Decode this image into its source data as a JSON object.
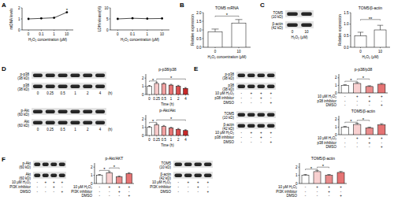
{
  "panel_labels": [
    "A",
    "B",
    "C",
    "D",
    "E",
    "F"
  ],
  "chart_data": [
    {
      "type": "line",
      "y_label": "mtDNA levels",
      "x_label": "H₂O₂ concentration (μM)",
      "categories": [
        "0",
        "0.1",
        "1",
        "10"
      ],
      "values": [
        1.0,
        1.05,
        1.1,
        1.6
      ],
      "color": "#000000",
      "marker": "circle",
      "ylim": [
        0,
        2
      ],
      "yticks": [
        0,
        1,
        2
      ],
      "annotations": [
        {
          "text": "*",
          "from": 3,
          "to": 3,
          "y": 1.8
        }
      ]
    },
    {
      "type": "line",
      "y_label": "LDH release(%)",
      "x_label": "H₂O₂ concentration (μM)",
      "categories": [
        "0",
        "0.1",
        "1",
        "10"
      ],
      "values": [
        5.0,
        5.3,
        5.1,
        5.2
      ],
      "color": "#000000",
      "marker": "circle",
      "ylim": [
        0,
        10
      ],
      "yticks": [
        0,
        5,
        10
      ]
    },
    {
      "type": "bar",
      "title": "TOM5 mRNA",
      "y_label": "Relative expression",
      "x_label": "H₂O₂ concentration (μM)",
      "categories": [
        "0",
        "10"
      ],
      "values": [
        0.9,
        1.4
      ],
      "errors": [
        0.15,
        0.2
      ],
      "color": "#ffffff",
      "ylim": [
        0,
        2
      ],
      "yticks": [
        {
          "value": 0,
          "label": "0.0"
        },
        0.5,
        {
          "value": 1,
          "label": "1.0"
        },
        1.5,
        {
          "value": 2,
          "label": "2.0"
        }
      ],
      "annotations": [
        {
          "text": "*",
          "from": 0,
          "to": 1,
          "y": 1.8
        }
      ]
    },
    {
      "type": "bar",
      "title": "TOM5/β-actin",
      "y_label": "Relative expression",
      "x_label": "H₂O₂ (μM)",
      "categories": [
        "0",
        "10"
      ],
      "values": [
        0.5,
        0.75
      ],
      "errors": [
        0.15,
        0.2
      ],
      "color": "#ffffff",
      "ylim": [
        0,
        1.5
      ],
      "yticks": [
        {
          "value": 0,
          "label": "0.0"
        },
        0.5,
        {
          "value": 1,
          "label": "1.0"
        },
        1.5
      ],
      "annotations": [
        {
          "text": "**",
          "from": 0,
          "to": 1,
          "y": 1.2
        }
      ]
    },
    {
      "type": "bar",
      "title": "p-p38/p38",
      "x_label": "Time (h)",
      "categories": [
        "0",
        "0.25",
        "0.5",
        "1",
        "2",
        "4"
      ],
      "values": [
        1.0,
        1.35,
        1.3,
        1.15,
        1.0,
        0.75
      ],
      "errors": [
        0.1,
        0.15,
        0.12,
        0.1,
        0.12,
        0.1
      ],
      "colors": [
        "#ffffff",
        "#f6c9c9",
        "#f0a0a0",
        "#e57373",
        "#d94f4f",
        "#c62828"
      ],
      "ylim": [
        0,
        2.5
      ],
      "yticks": [
        0,
        1,
        2
      ],
      "annotations": [
        {
          "text": "*",
          "from": 0,
          "to": 1,
          "y": 1.65
        },
        {
          "text": "*",
          "from": 1,
          "to": 5,
          "y": 1.9
        }
      ]
    },
    {
      "type": "bar",
      "title": "p-Akt/Akt",
      "x_label": "Time (h)",
      "categories": [
        "0",
        "0.25",
        "0.5",
        "1",
        "2",
        "4"
      ],
      "values": [
        1.0,
        1.3,
        1.1,
        0.9,
        0.75,
        0.6
      ],
      "errors": [
        0.1,
        0.15,
        0.12,
        0.1,
        0.1,
        0.1
      ],
      "colors": [
        "#ffffff",
        "#f6c9c9",
        "#f0a0a0",
        "#e57373",
        "#d94f4f",
        "#c62828"
      ],
      "ylim": [
        0,
        2.5
      ],
      "yticks": [
        0,
        1,
        2
      ],
      "annotations": [
        {
          "text": "*",
          "from": 0,
          "to": 1,
          "y": 1.6
        },
        {
          "text": "*",
          "from": 1,
          "to": 5,
          "y": 1.9
        }
      ]
    },
    {
      "type": "bar",
      "title": "p-p38/p38",
      "categories": [
        null,
        null,
        null,
        null
      ],
      "values": [
        1.0,
        1.25,
        0.85,
        1.15
      ],
      "errors": [
        0.1,
        0.12,
        0.1,
        0.12
      ],
      "colors": [
        "#ffffff",
        "#f8d0d0",
        "#e88b8b",
        "#e57373"
      ],
      "ylim": [
        0,
        2.5
      ],
      "yticks": [
        0,
        1,
        2
      ],
      "conditions": [
        {
          "label": "10 μM H₂O₂",
          "values": [
            "-",
            "+",
            "+",
            "+"
          ]
        },
        {
          "label": "p38 inhibitor",
          "values": [
            "-",
            "-",
            "+",
            "-"
          ]
        },
        {
          "label": "DMSO",
          "values": [
            "-",
            "-",
            "-",
            "+"
          ]
        }
      ],
      "annotations": [
        {
          "text": "*",
          "from": 0,
          "to": 1,
          "y": 1.55
        },
        {
          "text": "*",
          "from": 1,
          "to": 2,
          "y": 1.85
        }
      ]
    },
    {
      "type": "bar",
      "title": "TOM5/β-actin",
      "categories": [
        null,
        null,
        null,
        null
      ],
      "values": [
        1.0,
        1.35,
        0.9,
        1.3
      ],
      "errors": [
        0.1,
        0.15,
        0.1,
        0.15
      ],
      "colors": [
        "#ffffff",
        "#f8d0d0",
        "#e88b8b",
        "#e57373"
      ],
      "ylim": [
        0,
        2.5
      ],
      "yticks": [
        0,
        1,
        2
      ],
      "conditions": [
        {
          "label": "10 μM H₂O₂",
          "values": [
            "-",
            "+",
            "+",
            "+"
          ]
        },
        {
          "label": "p38 inhibitor",
          "values": [
            "-",
            "-",
            "+",
            "-"
          ]
        },
        {
          "label": "DMSO",
          "values": [
            "-",
            "-",
            "-",
            "+"
          ]
        }
      ],
      "annotations": [
        {
          "text": "*",
          "from": 0,
          "to": 1,
          "y": 1.65
        },
        {
          "text": "*",
          "from": 1,
          "to": 2,
          "y": 1.9
        }
      ]
    },
    {
      "type": "bar",
      "title": "p-Akt/AKT",
      "categories": [
        null,
        null,
        null,
        null
      ],
      "values": [
        1.0,
        1.3,
        0.8,
        1.2
      ],
      "errors": [
        0.1,
        0.15,
        0.1,
        0.12
      ],
      "colors": [
        "#ffffff",
        "#f8d0d0",
        "#e88b8b",
        "#e57373"
      ],
      "ylim": [
        0,
        2.5
      ],
      "yticks": [
        0,
        1,
        2
      ],
      "conditions": [
        {
          "label": "10 μM H₂O₂",
          "values": [
            "-",
            "+",
            "+",
            "+"
          ]
        },
        {
          "label": "PI3K inhibitor",
          "values": [
            "-",
            "-",
            "+",
            "-"
          ]
        },
        {
          "label": "DMSO",
          "values": [
            "-",
            "-",
            "-",
            "+"
          ]
        }
      ],
      "annotations": [
        {
          "text": "*",
          "from": 0,
          "to": 1,
          "y": 1.6
        },
        {
          "text": "*",
          "from": 1,
          "to": 2,
          "y": 1.9
        }
      ]
    },
    {
      "type": "bar",
      "title": "TOM5/β-actin",
      "categories": [
        null,
        null,
        null,
        null
      ],
      "values": [
        1.0,
        1.45,
        1.0,
        1.35
      ],
      "errors": [
        0.1,
        0.15,
        0.1,
        0.12
      ],
      "colors": [
        "#ffffff",
        "#f8d0d0",
        "#e88b8b",
        "#e57373"
      ],
      "ylim": [
        0,
        2.5
      ],
      "yticks": [
        0,
        1,
        2
      ],
      "conditions": [
        {
          "label": "10 μM H₂O₂",
          "values": [
            "-",
            "+",
            "+",
            "+"
          ]
        },
        {
          "label": "PI3K inhibitor",
          "values": [
            "-",
            "-",
            "+",
            "-"
          ]
        },
        {
          "label": "DMSO",
          "values": [
            "-",
            "-",
            "-",
            "+"
          ]
        }
      ],
      "annotations": [
        {
          "text": "*",
          "from": 0,
          "to": 1,
          "y": 1.75
        },
        {
          "text": "*",
          "from": 1,
          "to": 2,
          "y": 2.0
        }
      ]
    }
  ],
  "blots": [
    {
      "rows": [
        {
          "label": "TOM5",
          "kd": "(10 kD)"
        },
        {
          "label": "β-actin",
          "kd": "(42 kD)"
        }
      ],
      "lane_labels": [
        "0",
        "10"
      ],
      "lane_title": "H₂O₂ (μM)"
    },
    {
      "rows": [
        {
          "label": "p-p38",
          "kd": "(38 kD)"
        },
        {
          "label": "p38",
          "kd": "(38 kD)"
        }
      ],
      "lane_labels": [
        "0",
        "0.25",
        "0.5",
        "1",
        "2",
        "4"
      ],
      "lane_title": "(h)"
    },
    {
      "rows": [
        {
          "label": "p-Akt",
          "kd": "(60 kD)"
        },
        {
          "label": "Akt",
          "kd": "(60 kD)"
        }
      ],
      "lane_labels": [
        "0",
        "0.25",
        "0.5",
        "1",
        "2",
        "4"
      ],
      "lane_title": "(h)"
    },
    {
      "rows": [
        {
          "label": "p-p38",
          "kd": "(38 kD)"
        },
        {
          "label": "p38",
          "kd": "(38 kD)"
        }
      ],
      "conditions": [
        {
          "label": "10 μM H₂O₂",
          "values": [
            "-",
            "+",
            "+",
            "+"
          ]
        },
        {
          "label": "p38 inhibitor",
          "values": [
            "-",
            "-",
            "+",
            "-"
          ]
        },
        {
          "label": "DMSO",
          "values": [
            "-",
            "-",
            "-",
            "+"
          ]
        }
      ]
    },
    {
      "rows": [
        {
          "label": "TOM5",
          "kd": "(10 kD)"
        },
        {
          "label": "β-actin",
          "kd": "(42 kD)"
        }
      ],
      "conditions": [
        {
          "label": "10 μM H₂O₂",
          "values": [
            "-",
            "+",
            "+",
            "+"
          ]
        },
        {
          "label": "p38 inhibitor",
          "values": [
            "-",
            "-",
            "+",
            "-"
          ]
        },
        {
          "label": "DMSO",
          "values": [
            "-",
            "-",
            "-",
            "+"
          ]
        }
      ]
    },
    {
      "rows": [
        {
          "label": "p-Akt",
          "kd": "(60 kD)"
        },
        {
          "label": "Akt",
          "kd": "(60 kD)"
        }
      ],
      "conditions": [
        {
          "label": "10 μM H₂O₂",
          "values": [
            "-",
            "+",
            "+",
            "+"
          ]
        },
        {
          "label": "PI3K inhibitor",
          "values": [
            "-",
            "-",
            "+",
            "-"
          ]
        },
        {
          "label": "DMSO",
          "values": [
            "-",
            "-",
            "-",
            "+"
          ]
        }
      ]
    },
    {
      "rows": [
        {
          "label": "TOM5",
          "kd": "(10 kD)"
        },
        {
          "label": "β-actin",
          "kd": "(42 kD)"
        }
      ],
      "conditions": [
        {
          "label": "10 μM H₂O₂",
          "values": [
            "-",
            "+",
            "+",
            "+"
          ]
        },
        {
          "label": "PI3K inhibitor",
          "values": [
            "-",
            "-",
            "+",
            "-"
          ]
        },
        {
          "label": "DMSO",
          "values": [
            "-",
            "-",
            "-",
            "+"
          ]
        }
      ]
    }
  ]
}
